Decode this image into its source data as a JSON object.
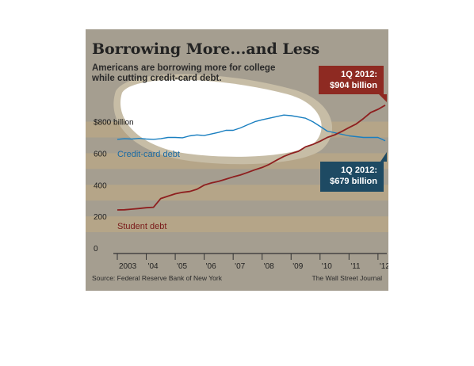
{
  "header": {
    "title": "Borrowing More...and Less",
    "subtitle": "Americans are borrowing more for college while cutting credit-card debt."
  },
  "footer": {
    "source": "Source: Federal Reserve Bank of New York",
    "credit": "The Wall Street Journal"
  },
  "colors": {
    "panel": "#a59e90",
    "band": "#b5a588",
    "student": "#8e1f1f",
    "credit_card": "#1a7fc0",
    "credit_card_box": "#1e4a63",
    "student_box": "#8e2a22",
    "highlight": "#ffffff"
  },
  "chart_data": {
    "type": "line",
    "title": "Borrowing More...and Less",
    "subtitle": "Americans are borrowing more for college while cutting credit-card debt.",
    "x_tick_labels": [
      "2003",
      "'04",
      "'05",
      "'06",
      "'07",
      "'08",
      "'09",
      "'10",
      "'11",
      "'12"
    ],
    "x_ticks": [
      2003,
      2004,
      2005,
      2006,
      2007,
      2008,
      2009,
      2010,
      2011,
      2012
    ],
    "xlim": [
      2003,
      2012.25
    ],
    "ylim": [
      0,
      900
    ],
    "y_ticks": [
      {
        "value": 0,
        "label": "0"
      },
      {
        "value": 200,
        "label": "200"
      },
      {
        "value": 400,
        "label": "400"
      },
      {
        "value": 600,
        "label": "600"
      },
      {
        "value": 800,
        "label": "$800 billion"
      }
    ],
    "grid": "alternating horizontal bands",
    "series": [
      {
        "name": "Credit-card debt",
        "color": "#1a7fc0",
        "x": [
          2003.0,
          2003.25,
          2003.5,
          2003.75,
          2004.0,
          2004.25,
          2004.5,
          2004.75,
          2005.0,
          2005.25,
          2005.5,
          2005.75,
          2006.0,
          2006.25,
          2006.5,
          2006.75,
          2007.0,
          2007.25,
          2007.5,
          2007.75,
          2008.0,
          2008.25,
          2008.5,
          2008.75,
          2009.0,
          2009.25,
          2009.5,
          2009.75,
          2010.0,
          2010.25,
          2010.5,
          2010.75,
          2011.0,
          2011.25,
          2011.5,
          2011.75,
          2012.0,
          2012.25
        ],
        "values": [
          688,
          692,
          690,
          694,
          690,
          688,
          692,
          700,
          700,
          698,
          710,
          716,
          712,
          722,
          732,
          745,
          745,
          760,
          780,
          800,
          812,
          822,
          832,
          842,
          838,
          830,
          822,
          800,
          770,
          740,
          730,
          720,
          710,
          705,
          700,
          700,
          700,
          679
        ]
      },
      {
        "name": "Student debt",
        "color": "#8e1f1f",
        "x": [
          2003.0,
          2003.25,
          2003.5,
          2003.75,
          2004.0,
          2004.25,
          2004.5,
          2004.75,
          2005.0,
          2005.25,
          2005.5,
          2005.75,
          2006.0,
          2006.25,
          2006.5,
          2006.75,
          2007.0,
          2007.25,
          2007.5,
          2007.75,
          2008.0,
          2008.25,
          2008.5,
          2008.75,
          2009.0,
          2009.25,
          2009.5,
          2009.75,
          2010.0,
          2010.25,
          2010.5,
          2010.75,
          2011.0,
          2011.25,
          2011.5,
          2011.75,
          2012.0,
          2012.25
        ],
        "values": [
          241,
          242,
          246,
          250,
          255,
          258,
          313,
          328,
          343,
          352,
          358,
          372,
          398,
          412,
          422,
          436,
          450,
          462,
          478,
          495,
          510,
          530,
          556,
          580,
          598,
          612,
          640,
          656,
          676,
          700,
          716,
          738,
          762,
          786,
          820,
          858,
          878,
          904
        ]
      }
    ],
    "annotations": [
      {
        "text": "Credit-card debt",
        "series": "Credit-card debt"
      },
      {
        "text": "Student debt",
        "series": "Student debt"
      },
      {
        "text": "1Q 2012:",
        "value_text": "$904 billion",
        "series": "Student debt"
      },
      {
        "text": "1Q 2012:",
        "value_text": "$679 billion",
        "series": "Credit-card debt"
      }
    ]
  }
}
